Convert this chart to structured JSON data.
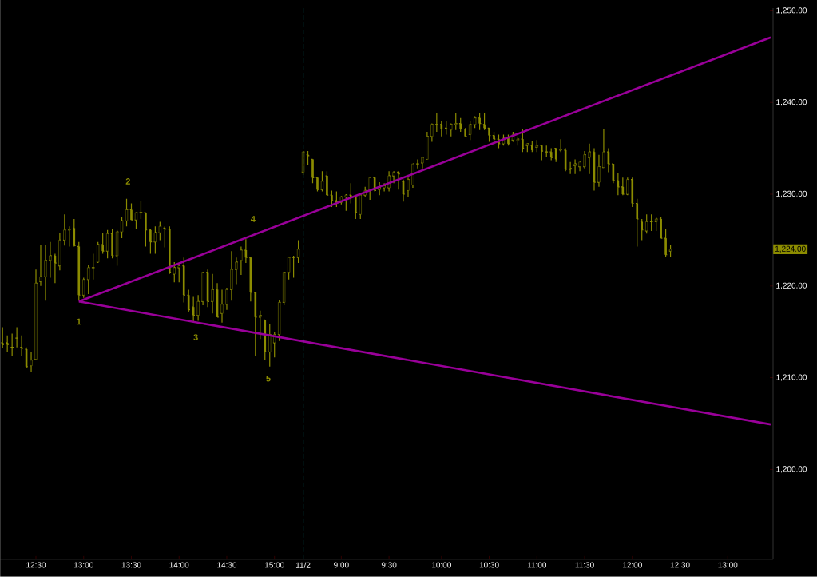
{
  "chart_data": {
    "type": "candlestick",
    "color": "#8c8c00",
    "categories": [
      null,
      null,
      null,
      null,
      null,
      null,
      null,
      "12:30",
      null,
      null,
      null,
      null,
      null,
      null,
      null,
      null,
      null,
      "13:00",
      null,
      null,
      null,
      null,
      null,
      null,
      null,
      null,
      null,
      "13:30",
      null,
      null,
      null,
      null,
      null,
      null,
      null,
      null,
      null,
      "14:00",
      null,
      null,
      null,
      null,
      null,
      null,
      null,
      null,
      null,
      "14:30",
      null,
      null,
      null,
      null,
      null,
      null,
      null,
      null,
      null,
      "15:00",
      null,
      null,
      null,
      null,
      null,
      "11/2",
      null,
      null,
      null,
      null,
      null,
      null,
      null,
      "9:00",
      null,
      null,
      null,
      null,
      null,
      null,
      null,
      null,
      null,
      "9:30",
      null,
      null,
      null,
      null,
      null,
      null,
      null,
      null,
      null,
      null,
      "10:00",
      null,
      null,
      null,
      null,
      null,
      null,
      null,
      null,
      null,
      "10:30",
      null,
      null,
      null,
      null,
      null,
      null,
      null,
      null,
      null,
      "11:00",
      null,
      null,
      null,
      null,
      null,
      null,
      null,
      null,
      null,
      "11:30",
      null,
      null,
      null,
      null,
      null,
      null,
      null,
      null,
      null,
      "12:00",
      null,
      null,
      null,
      null,
      null,
      null,
      null,
      null,
      null,
      "12:30",
      null,
      null,
      null,
      null,
      null,
      null,
      null,
      null,
      null,
      "13:00",
      null,
      null,
      null,
      null,
      null,
      null,
      null,
      null,
      null
    ],
    "ohlc": [
      [
        1213.8,
        1215.5,
        1213.2,
        1213.6
      ],
      [
        1213.8,
        1214.6,
        1212.8,
        1213.6
      ],
      [
        1213.3,
        1214.8,
        1212.4,
        1213.3
      ],
      [
        1214.3,
        1215.5,
        1213.3,
        1214.3
      ],
      [
        1213.3,
        1214.6,
        1212.4,
        1213.2
      ],
      [
        1213.1,
        1213.3,
        1211.1,
        1211.2
      ],
      [
        1211.3,
        1212.8,
        1210.6,
        1211.9
      ],
      [
        1212.0,
        1221.8,
        1211.9,
        1220.3
      ],
      [
        1220.5,
        1224.5,
        1220.0,
        1221.0
      ],
      [
        1221.0,
        1224.5,
        1218.4,
        1222.8
      ],
      [
        1222.8,
        1224.8,
        1220.9,
        1223.3
      ],
      [
        1223.3,
        1223.5,
        1220.3,
        1222.5
      ],
      [
        1222.2,
        1225.8,
        1221.7,
        1225.0
      ],
      [
        1225.0,
        1227.8,
        1224.4,
        1226.1
      ],
      [
        1226.1,
        1226.5,
        1224.3,
        1226.2
      ],
      [
        1226.3,
        1227.3,
        1224.3,
        1224.4
      ],
      [
        1224.3,
        1224.8,
        1218.4,
        1219.0
      ],
      [
        1219.0,
        1220.9,
        1218.7,
        1220.7
      ],
      [
        1220.7,
        1222.3,
        1219.1,
        1222.0
      ],
      [
        1222.0,
        1223.5,
        1220.7,
        1222.0
      ],
      [
        1222.6,
        1224.8,
        1222.5,
        1224.5
      ],
      [
        1224.5,
        1225.8,
        1223.5,
        1223.8
      ],
      [
        1223.8,
        1226.1,
        1223.0,
        1225.7
      ],
      [
        1225.7,
        1226.2,
        1223.0,
        1223.3
      ],
      [
        1223.3,
        1226.1,
        1222.2,
        1225.9
      ],
      [
        1225.9,
        1227.5,
        1225.2,
        1227.1
      ],
      [
        1227.1,
        1229.5,
        1226.5,
        1228.3
      ],
      [
        1228.3,
        1229.0,
        1227.2,
        1227.2
      ],
      [
        1227.2,
        1228.0,
        1226.2,
        1228.0
      ],
      [
        1228.0,
        1229.3,
        1227.3,
        1228.0
      ],
      [
        1228.0,
        1228.0,
        1224.3,
        1226.1
      ],
      [
        1226.1,
        1226.2,
        1223.5,
        1224.8
      ],
      [
        1224.8,
        1226.5,
        1223.5,
        1225.8
      ],
      [
        1225.8,
        1227.0,
        1225.0,
        1226.5
      ],
      [
        1226.3,
        1226.5,
        1224.2,
        1226.2
      ],
      [
        1226.2,
        1226.5,
        1221.3,
        1221.5
      ],
      [
        1221.3,
        1222.6,
        1220.4,
        1222.0
      ],
      [
        1222.0,
        1222.4,
        1220.4,
        1222.2
      ],
      [
        1222.2,
        1223.1,
        1218.2,
        1219.0
      ],
      [
        1219.0,
        1219.6,
        1217.2,
        1217.4
      ],
      [
        1217.7,
        1218.8,
        1216.1,
        1216.8
      ],
      [
        1216.8,
        1219.0,
        1216.2,
        1218.3
      ],
      [
        1218.3,
        1221.5,
        1217.9,
        1221.5
      ],
      [
        1221.5,
        1221.8,
        1217.7,
        1218.3
      ],
      [
        1218.3,
        1221.3,
        1217.0,
        1219.6
      ],
      [
        1219.6,
        1220.3,
        1216.6,
        1216.6
      ],
      [
        1217.0,
        1219.6,
        1216.0,
        1218.0
      ],
      [
        1218.0,
        1219.8,
        1217.4,
        1219.6
      ],
      [
        1219.6,
        1223.8,
        1218.4,
        1221.8
      ],
      [
        1221.8,
        1223.1,
        1220.2,
        1222.6
      ],
      [
        1222.8,
        1224.3,
        1221.2,
        1223.9
      ],
      [
        1223.9,
        1225.1,
        1222.5,
        1223.1
      ],
      [
        1223.1,
        1223.1,
        1218.3,
        1219.3
      ],
      [
        1219.3,
        1219.3,
        1212.4,
        1216.6
      ],
      [
        1216.6,
        1217.3,
        1214.2,
        1216.8
      ],
      [
        1216.3,
        1216.3,
        1211.9,
        1212.8
      ],
      [
        1212.8,
        1215.8,
        1211.2,
        1214.7
      ],
      [
        1213.8,
        1215.0,
        1212.2,
        1214.7
      ],
      [
        1214.7,
        1218.5,
        1214.0,
        1218.2
      ],
      [
        1218.2,
        1221.5,
        1217.9,
        1221.5
      ],
      [
        1221.5,
        1223.1,
        1220.7,
        1223.1
      ],
      [
        1223.1,
        1223.3,
        1220.9,
        1223.1
      ],
      [
        1223.1,
        1225.0,
        1222.5,
        1224.0
      ],
      [
        1232.4,
        1234.6,
        1232.1,
        1234.6
      ],
      [
        1234.3,
        1234.7,
        1233.2,
        1234.2
      ],
      [
        1233.8,
        1233.8,
        1231.2,
        1231.8
      ],
      [
        1231.8,
        1231.8,
        1230.3,
        1230.5
      ],
      [
        1230.5,
        1232.5,
        1230.3,
        1231.4
      ],
      [
        1232.0,
        1232.5,
        1229.9,
        1229.9
      ],
      [
        1229.9,
        1230.4,
        1228.6,
        1229.3
      ],
      [
        1229.3,
        1230.3,
        1228.6,
        1229.1
      ],
      [
        1229.1,
        1229.8,
        1228.9,
        1229.7
      ],
      [
        1229.7,
        1230.0,
        1228.2,
        1229.9
      ],
      [
        1229.9,
        1231.2,
        1229.0,
        1229.7
      ],
      [
        1229.7,
        1229.7,
        1227.3,
        1228.0
      ],
      [
        1227.8,
        1229.9,
        1227.3,
        1229.9
      ],
      [
        1229.9,
        1230.8,
        1229.7,
        1230.4
      ],
      [
        1230.4,
        1231.8,
        1229.4,
        1231.8
      ],
      [
        1231.8,
        1231.8,
        1230.3,
        1230.4
      ],
      [
        1230.5,
        1231.3,
        1229.9,
        1230.7
      ],
      [
        1230.7,
        1231.2,
        1230.3,
        1230.9
      ],
      [
        1230.7,
        1232.5,
        1230.3,
        1232.0
      ],
      [
        1232.0,
        1232.5,
        1231.2,
        1232.4
      ],
      [
        1232.4,
        1232.5,
        1230.5,
        1232.2
      ],
      [
        1231.4,
        1231.6,
        1229.2,
        1230.0
      ],
      [
        1230.4,
        1231.8,
        1229.7,
        1231.6
      ],
      [
        1231.0,
        1233.3,
        1230.7,
        1233.3
      ],
      [
        1233.3,
        1233.8,
        1232.8,
        1233.3
      ],
      [
        1233.4,
        1234.0,
        1232.8,
        1234.0
      ],
      [
        1233.8,
        1236.8,
        1233.8,
        1236.3
      ],
      [
        1236.3,
        1237.7,
        1235.7,
        1237.6
      ],
      [
        1237.6,
        1238.8,
        1236.8,
        1237.6
      ],
      [
        1237.6,
        1238.0,
        1236.3,
        1237.1
      ],
      [
        1237.2,
        1238.0,
        1236.5,
        1237.1
      ],
      [
        1237.0,
        1237.7,
        1236.3,
        1237.6
      ],
      [
        1237.6,
        1238.8,
        1237.0,
        1237.7
      ],
      [
        1237.7,
        1238.3,
        1236.8,
        1237.1
      ],
      [
        1237.1,
        1237.2,
        1236.3,
        1236.3
      ],
      [
        1236.5,
        1238.0,
        1235.9,
        1237.6
      ],
      [
        1237.6,
        1238.5,
        1237.2,
        1238.3
      ],
      [
        1238.3,
        1238.8,
        1237.0,
        1237.7
      ],
      [
        1237.6,
        1238.8,
        1237.0,
        1237.2
      ],
      [
        1237.2,
        1237.2,
        1235.7,
        1236.4
      ],
      [
        1236.4,
        1236.8,
        1235.3,
        1236.0
      ],
      [
        1236.0,
        1236.5,
        1235.0,
        1235.5
      ],
      [
        1235.5,
        1236.5,
        1235.3,
        1236.1
      ],
      [
        1236.1,
        1236.5,
        1235.3,
        1235.5
      ],
      [
        1235.9,
        1236.8,
        1235.7,
        1236.5
      ],
      [
        1235.8,
        1236.3,
        1235.3,
        1236.0
      ],
      [
        1236.0,
        1237.1,
        1234.6,
        1235.0
      ],
      [
        1235.3,
        1235.5,
        1234.6,
        1235.5
      ],
      [
        1235.3,
        1235.8,
        1234.6,
        1234.8
      ],
      [
        1235.1,
        1235.9,
        1234.6,
        1235.3
      ],
      [
        1235.3,
        1235.3,
        1233.7,
        1234.7
      ],
      [
        1234.6,
        1235.3,
        1234.0,
        1234.6
      ],
      [
        1234.6,
        1235.0,
        1233.7,
        1234.0
      ],
      [
        1235.0,
        1235.0,
        1233.5,
        1233.8
      ],
      [
        1234.8,
        1236.0,
        1234.6,
        1234.9
      ],
      [
        1234.8,
        1235.0,
        1232.5,
        1232.7
      ],
      [
        1232.7,
        1233.5,
        1232.2,
        1232.8
      ],
      [
        1233.1,
        1233.8,
        1232.2,
        1233.3
      ],
      [
        1233.0,
        1233.5,
        1232.5,
        1233.5
      ],
      [
        1233.0,
        1234.7,
        1232.8,
        1234.3
      ],
      [
        1234.0,
        1235.5,
        1232.2,
        1234.6
      ],
      [
        1234.6,
        1235.0,
        1230.4,
        1231.3
      ],
      [
        1231.3,
        1234.3,
        1230.8,
        1233.0
      ],
      [
        1232.9,
        1237.1,
        1232.9,
        1234.6
      ],
      [
        1234.6,
        1235.0,
        1232.4,
        1233.3
      ],
      [
        1233.3,
        1233.3,
        1231.2,
        1231.5
      ],
      [
        1231.5,
        1232.3,
        1229.9,
        1230.8
      ],
      [
        1230.8,
        1231.8,
        1229.9,
        1230.0
      ],
      [
        1230.0,
        1231.8,
        1229.9,
        1231.6
      ],
      [
        1231.6,
        1231.8,
        1228.6,
        1229.0
      ],
      [
        1229.0,
        1229.5,
        1224.3,
        1227.3
      ],
      [
        1227.0,
        1227.3,
        1225.0,
        1226.1
      ],
      [
        1226.0,
        1227.8,
        1225.7,
        1227.0
      ],
      [
        1227.0,
        1227.8,
        1226.0,
        1227.0
      ],
      [
        1227.0,
        1227.5,
        1226.0,
        1227.3
      ],
      [
        1227.3,
        1227.5,
        1225.2,
        1225.2
      ],
      [
        1225.2,
        1226.2,
        1223.2,
        1223.4
      ],
      [
        1223.8,
        1224.5,
        1223.2,
        1224.0
      ],
      null,
      null,
      null,
      null,
      null,
      null,
      null,
      null,
      null,
      null,
      null,
      null,
      null,
      null,
      null,
      null,
      null,
      null,
      null,
      null,
      null
    ],
    "series": [
      {
        "type": "line",
        "color": "#990099",
        "values": [
          null,
          null,
          null,
          null,
          null,
          null,
          null,
          null,
          null,
          null,
          null,
          null,
          null,
          null,
          null,
          null,
          1218.3,
          null,
          null,
          null,
          null,
          null,
          null,
          null,
          null,
          null,
          null,
          null,
          null,
          null,
          null,
          null,
          null,
          null,
          null,
          null,
          null,
          null,
          null,
          null,
          null,
          null,
          null,
          null,
          null,
          null,
          null,
          null,
          null,
          null,
          null,
          null,
          null,
          null,
          null,
          null,
          null,
          null,
          null,
          null,
          null,
          null,
          null,
          null,
          null,
          null,
          null,
          null,
          null,
          null,
          null,
          null,
          null,
          null,
          null,
          null,
          null,
          null,
          null,
          null,
          null,
          null,
          null,
          null,
          null,
          null,
          null,
          null,
          null,
          null,
          null,
          null,
          null,
          null,
          null,
          null,
          null,
          null,
          null,
          null,
          null,
          null,
          null,
          null,
          null,
          null,
          null,
          null,
          null,
          null,
          null,
          null,
          null,
          null,
          null,
          null,
          null,
          null,
          null,
          null,
          null,
          null,
          null,
          null,
          null,
          null,
          null,
          null,
          null,
          null,
          null,
          null,
          null,
          null,
          null,
          null,
          null,
          null,
          null,
          null,
          null,
          null,
          null,
          null,
          null,
          null,
          null,
          null,
          null,
          null,
          null,
          null,
          null,
          null,
          null,
          null,
          null,
          null,
          null,
          null,
          null,
          1247.1
        ]
      },
      {
        "type": "line",
        "color": "#990099",
        "values": [
          null,
          null,
          null,
          null,
          null,
          null,
          null,
          null,
          null,
          null,
          null,
          null,
          null,
          null,
          null,
          null,
          1218.3,
          null,
          null,
          null,
          null,
          null,
          null,
          null,
          null,
          null,
          null,
          null,
          null,
          null,
          null,
          null,
          null,
          null,
          null,
          null,
          null,
          null,
          null,
          null,
          null,
          null,
          null,
          null,
          null,
          null,
          null,
          null,
          null,
          null,
          null,
          null,
          null,
          null,
          null,
          null,
          null,
          null,
          null,
          null,
          null,
          null,
          null,
          null,
          null,
          null,
          null,
          null,
          null,
          null,
          null,
          null,
          null,
          null,
          null,
          null,
          null,
          null,
          null,
          null,
          null,
          null,
          null,
          null,
          null,
          null,
          null,
          null,
          null,
          null,
          null,
          null,
          null,
          null,
          null,
          null,
          null,
          null,
          null,
          null,
          null,
          null,
          null,
          null,
          null,
          null,
          null,
          null,
          null,
          null,
          null,
          null,
          null,
          null,
          null,
          null,
          null,
          null,
          null,
          null,
          null,
          null,
          null,
          null,
          null,
          null,
          null,
          null,
          null,
          null,
          null,
          null,
          null,
          null,
          null,
          null,
          null,
          null,
          null,
          null,
          null,
          null,
          null,
          null,
          null,
          null,
          null,
          null,
          null,
          null,
          null,
          null,
          null,
          null,
          null,
          null,
          null,
          null,
          null,
          null,
          null,
          1204.9
        ]
      }
    ],
    "ylim": [
      1190.2,
      1250.3
    ],
    "yticks": [
      {
        "value": 1200,
        "label": "1,200.00"
      },
      {
        "value": 1210,
        "label": "1,210.00"
      },
      {
        "value": 1220,
        "label": "1,220.00"
      },
      {
        "value": 1230,
        "label": "1,230.00"
      },
      {
        "value": 1240,
        "label": "1,240.00"
      },
      {
        "value": 1250,
        "label": "1,250.00"
      }
    ],
    "ref_lines": [
      {
        "axis": "x",
        "value": "11/2",
        "color": "#00e5ee",
        "line_style": "dashed"
      }
    ],
    "annotations": [
      "1",
      "2",
      "3",
      "4",
      "5",
      "1,224.00"
    ]
  }
}
